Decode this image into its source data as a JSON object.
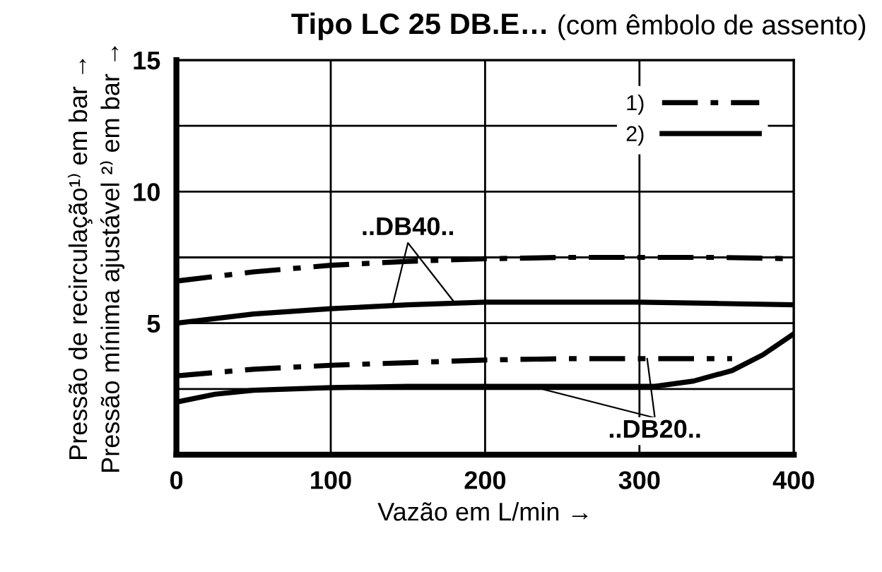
{
  "chart_data": {
    "type": "line",
    "title": "Tipo LC 25 DB.E…",
    "subtitle": "(com êmbolo de assento)",
    "xlabel": "Vazão em L/min →",
    "ylabel": "Pressão de recirculação¹⁾ em bar →\nPressão mínima ajustável ²⁾ em bar →",
    "xlim": [
      0,
      400
    ],
    "ylim": [
      0,
      15
    ],
    "xticks": [
      0,
      100,
      200,
      300,
      400
    ],
    "yticks": [
      {
        "value": 2.5,
        "label": null
      },
      5,
      {
        "value": 7.5,
        "label": null
      },
      10,
      {
        "value": 12.5,
        "label": null
      },
      15
    ],
    "grid": true,
    "legend": "top right",
    "series": [
      {
        "name": "1)",
        "color": "#000000",
        "line_style": "dashdot",
        "x": [
          0,
          50,
          100,
          150,
          200,
          250,
          300,
          350,
          400
        ],
        "values": [
          6.6,
          6.95,
          7.2,
          7.35,
          7.45,
          7.5,
          7.5,
          7.5,
          7.45
        ]
      },
      {
        "name": "2)",
        "color": "#000000",
        "line_style": "solid",
        "x": [
          0,
          50,
          100,
          150,
          200,
          250,
          300,
          350,
          400
        ],
        "values": [
          5.0,
          5.35,
          5.55,
          5.7,
          5.8,
          5.8,
          5.8,
          5.75,
          5.7
        ]
      },
      {
        "color": "#000000",
        "line_style": "dashdot",
        "x": [
          0,
          50,
          100,
          150,
          200,
          250,
          300,
          360
        ],
        "values": [
          3.0,
          3.25,
          3.4,
          3.5,
          3.6,
          3.65,
          3.65,
          3.65
        ]
      },
      {
        "color": "#000000",
        "line_style": "solid",
        "x": [
          0,
          25,
          50,
          100,
          150,
          200,
          250,
          310,
          335,
          360,
          380,
          400
        ],
        "values": [
          2.0,
          2.3,
          2.45,
          2.55,
          2.6,
          2.6,
          2.6,
          2.6,
          2.8,
          3.2,
          3.8,
          4.6
        ]
      }
    ],
    "annotations": [
      {
        "text": "..DB40..",
        "x": 180,
        "y": 5.8
      },
      {
        "text": "..DB20..",
        "x": 230,
        "y": 2.6
      }
    ]
  }
}
